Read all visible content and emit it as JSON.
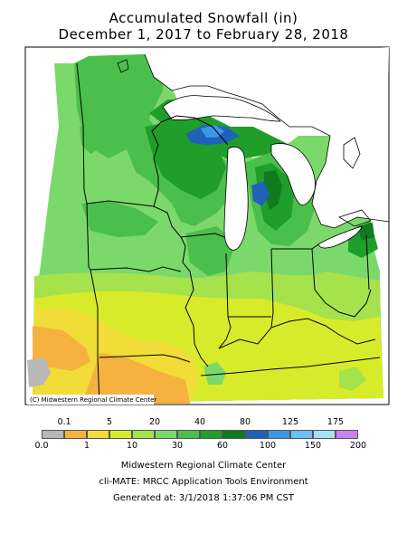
{
  "title_line1": "Accumulated Snowfall (in)",
  "title_line2": "December 1, 2017 to February 28, 2018",
  "copyright": "(C) Midwestern Regional Climate Center",
  "legend": {
    "top_labels": [
      "0.1",
      "5",
      "20",
      "40",
      "80",
      "125",
      "175"
    ],
    "bottom_labels": [
      "0.0",
      "1",
      "10",
      "30",
      "60",
      "100",
      "150",
      "200"
    ],
    "colors": [
      "#b8b8b8",
      "#f5b23f",
      "#f2dc37",
      "#d8eb2a",
      "#a6e24c",
      "#7ad96a",
      "#4bbf4b",
      "#1f9e2a",
      "#0f7a1f",
      "#1f62b8",
      "#3d95e6",
      "#6cc0f5",
      "#a8dff5",
      "#c983f0"
    ]
  },
  "footer": {
    "line1": "Midwestern Regional Climate Center",
    "line2": "cli-MATE: MRCC Application Tools Environment",
    "line3": "Generated at: 3/1/2018 1:37:06 PM CST"
  }
}
